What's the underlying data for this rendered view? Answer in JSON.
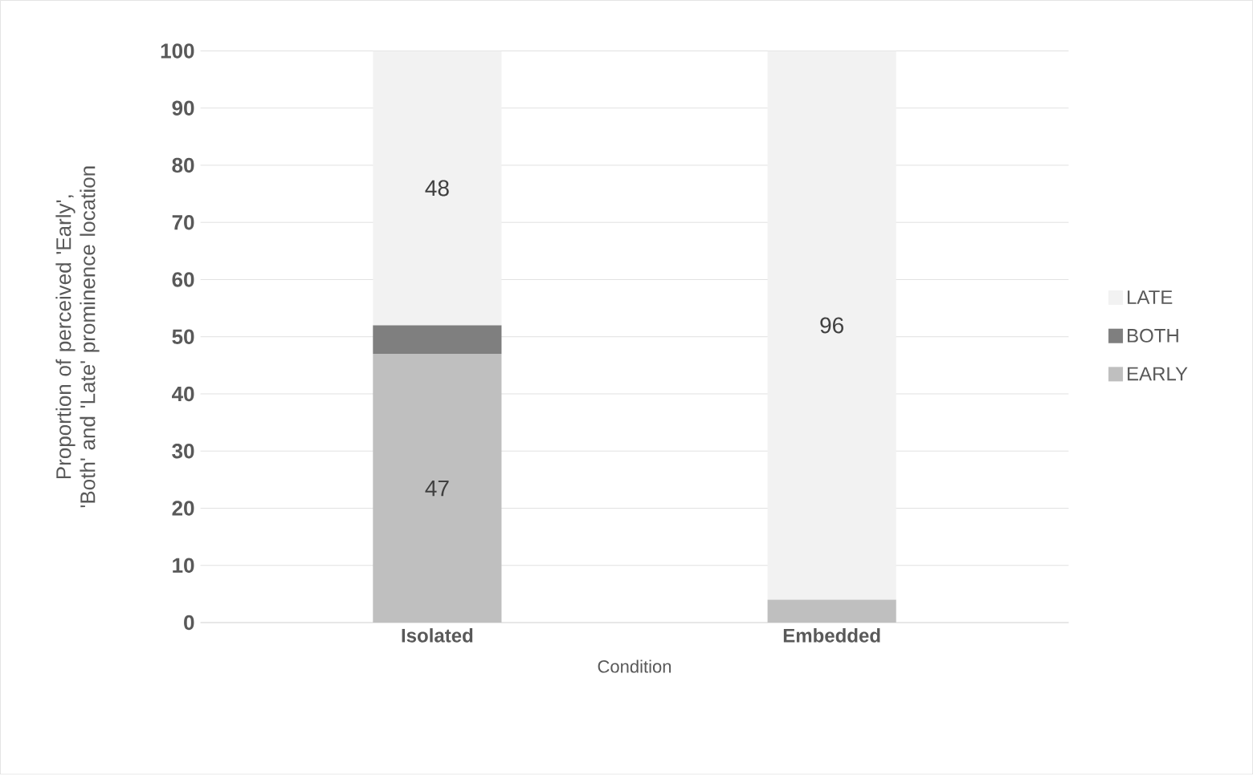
{
  "chart_data": {
    "type": "bar",
    "stacked": true,
    "xlabel": "Condition",
    "ylabel": "Proportion of perceived 'Early', 'Both' and 'Late' prominence location",
    "categories": [
      "Isolated",
      "Embedded"
    ],
    "series": [
      {
        "name": "EARLY",
        "color": "#bfbfbf",
        "values": [
          47,
          4
        ],
        "value_labels": [
          "47",
          null
        ]
      },
      {
        "name": "BOTH",
        "color": "#7f7f7f",
        "values": [
          5,
          0
        ],
        "value_labels": [
          null,
          null
        ]
      },
      {
        "name": "LATE",
        "color": "#f2f2f2",
        "values": [
          48,
          96
        ],
        "value_labels": [
          "48",
          "96"
        ]
      }
    ],
    "ylim": [
      0,
      100
    ],
    "yticks": [
      0,
      10,
      20,
      30,
      40,
      50,
      60,
      70,
      80,
      90,
      100
    ],
    "grid": "y",
    "legend": "right"
  }
}
